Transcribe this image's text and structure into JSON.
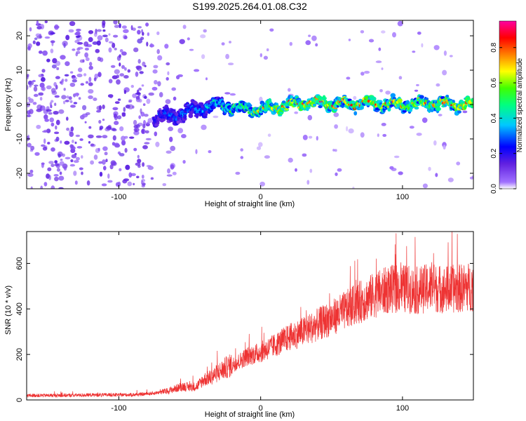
{
  "title": "S199.2025.264.01.08.C32",
  "chart_data": [
    {
      "type": "heatmap",
      "xlabel": "Height of straight line (km)",
      "ylabel": "Frequency (Hz)",
      "xlim": [
        -165,
        150
      ],
      "ylim": [
        -24.5,
        24.5
      ],
      "xticks": [
        -100,
        0,
        100
      ],
      "yticks": [
        -20,
        -10,
        0,
        10,
        20
      ],
      "colorbar": {
        "label": "Normalized spectral amplitude",
        "range": [
          0,
          0.95
        ],
        "ticks": [
          0.0,
          0.2,
          0.4,
          0.6,
          0.8
        ],
        "colormap": "rainbow"
      },
      "ridge": {
        "x": [
          -75,
          -60,
          -45,
          -30,
          -15,
          0,
          15,
          30,
          45,
          60,
          75,
          90,
          105,
          120,
          135,
          150
        ],
        "frequency": [
          -4,
          -3,
          -1.5,
          0,
          -1,
          -1.5,
          -0.5,
          0.5,
          0.5,
          0,
          0.5,
          0,
          0,
          0.5,
          0,
          0
        ],
        "peak_amplitude": [
          0.3,
          0.35,
          0.4,
          0.5,
          0.6,
          0.7,
          0.8,
          0.85,
          0.85,
          0.8,
          0.8,
          0.75,
          0.75,
          0.8,
          0.8,
          0.85
        ]
      }
    },
    {
      "type": "line",
      "xlabel": "Height of straight line (km)",
      "ylabel": "SNR (10 * v/v)",
      "xlim": [
        -165,
        150
      ],
      "ylim": [
        0,
        740
      ],
      "xticks": [
        -100,
        0,
        100
      ],
      "yticks": [
        0,
        200,
        400,
        600
      ],
      "series": [
        {
          "color": "#ee3333",
          "x": [
            -165,
            -140,
            -120,
            -100,
            -85,
            -75,
            -65,
            -55,
            -50,
            -45,
            -40,
            -35,
            -30,
            -25,
            -20,
            -15,
            -10,
            -5,
            0,
            10,
            20,
            30,
            40,
            50,
            60,
            70,
            80,
            90,
            100,
            110,
            120,
            130,
            140,
            150
          ],
          "values": [
            20,
            20,
            22,
            22,
            24,
            30,
            40,
            60,
            55,
            60,
            90,
            100,
            120,
            140,
            155,
            170,
            190,
            200,
            210,
            240,
            275,
            300,
            330,
            360,
            395,
            430,
            460,
            485,
            490,
            480,
            495,
            485,
            490,
            500
          ]
        }
      ]
    }
  ]
}
